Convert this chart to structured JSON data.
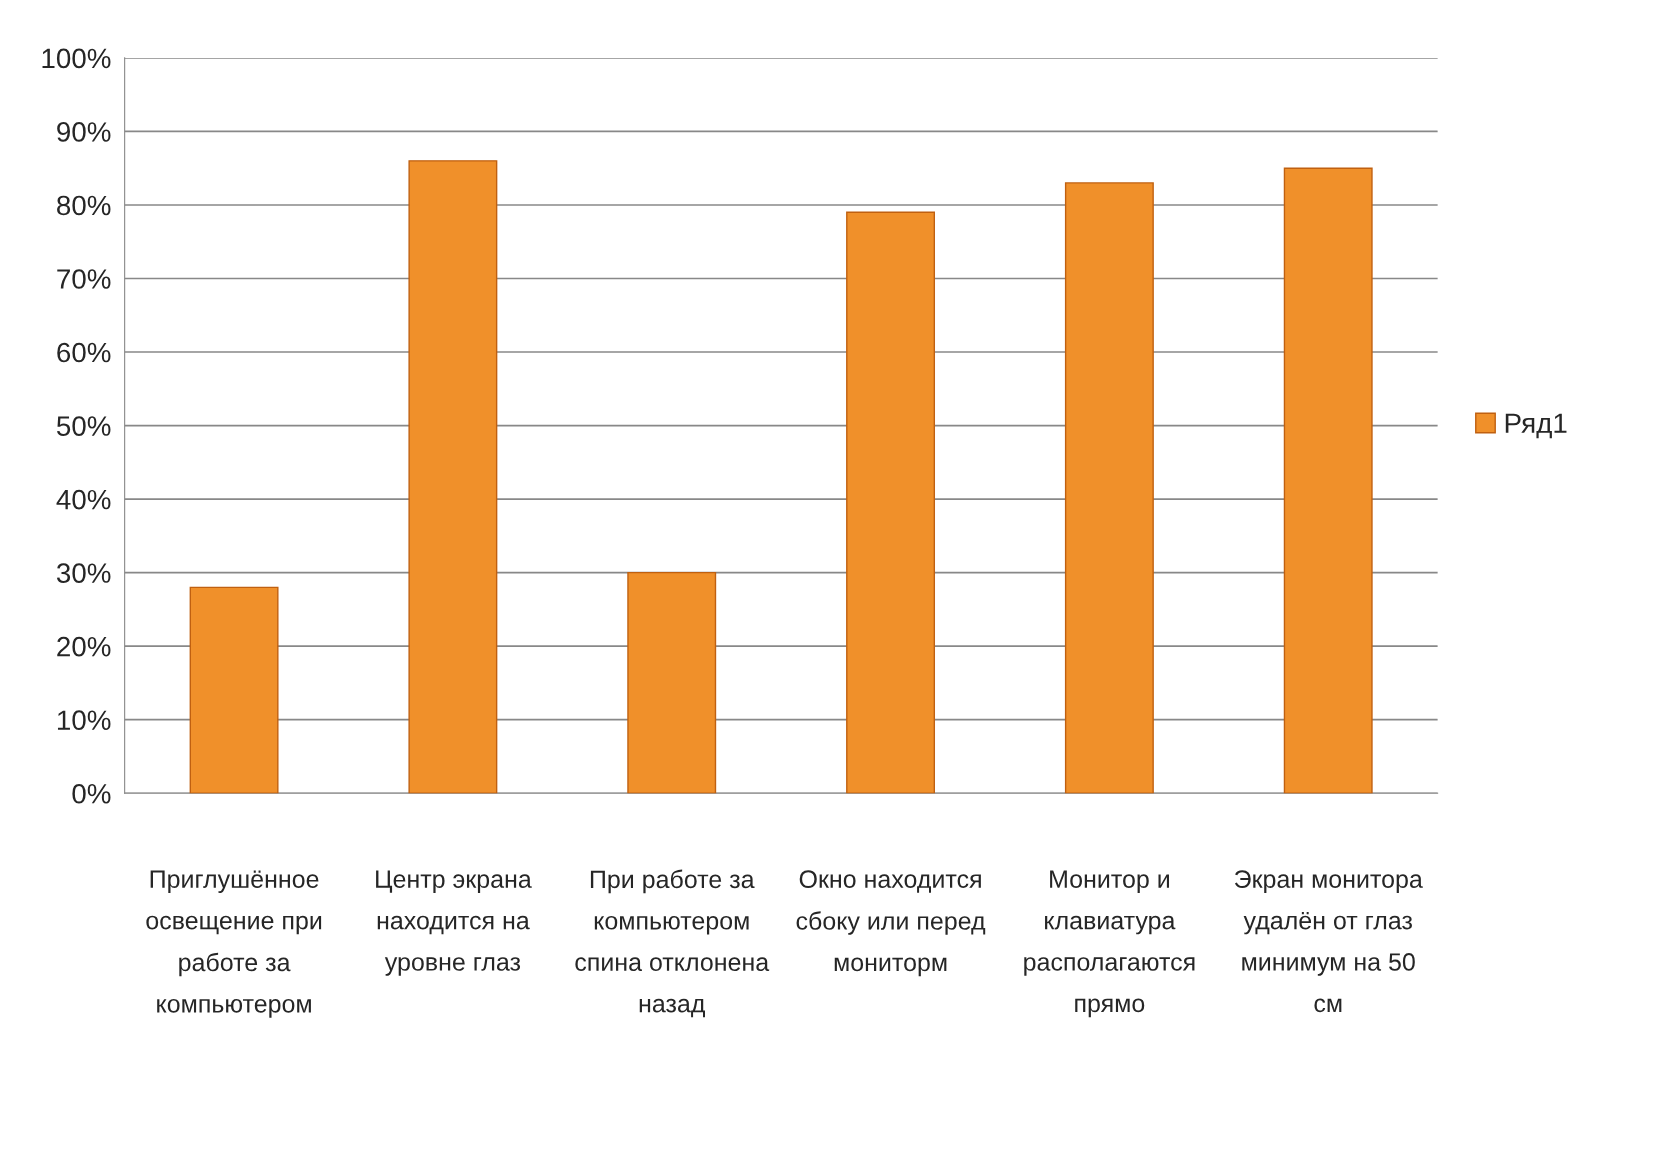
{
  "chart_data": {
    "type": "bar",
    "categories": [
      "Приглушённое освещение при работе за компьютером",
      "Центр экрана находится на уровне глаз",
      "При работе за компьютером спина отклонена назад",
      "Окно находится сбоку или перед мониторм",
      "Монитор и клавиатура располагаются прямо",
      "Экран монитора удалён от глаз минимум на 50 см"
    ],
    "series": [
      {
        "name": "Ряд1",
        "color": "#f0902a",
        "values": [
          28,
          86,
          30,
          79,
          83,
          85
        ]
      }
    ],
    "ylim": [
      0,
      100
    ],
    "yticks": [
      {
        "value": 0,
        "label": "0%"
      },
      {
        "value": 10,
        "label": "10%"
      },
      {
        "value": 20,
        "label": "20%"
      },
      {
        "value": 30,
        "label": "30%"
      },
      {
        "value": 40,
        "label": "40%"
      },
      {
        "value": 50,
        "label": "50%"
      },
      {
        "value": 60,
        "label": "60%"
      },
      {
        "value": 70,
        "label": "70%"
      },
      {
        "value": 80,
        "label": "80%"
      },
      {
        "value": 90,
        "label": "90%"
      },
      {
        "value": 100,
        "label": "100%"
      }
    ],
    "grid": "y",
    "legend": "right"
  }
}
